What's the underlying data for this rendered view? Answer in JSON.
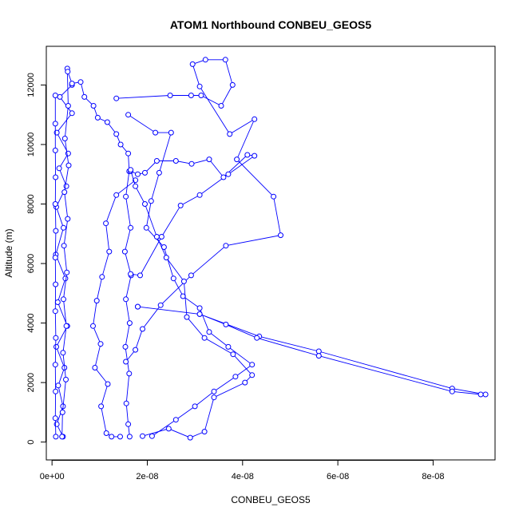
{
  "chart_data": {
    "type": "scatter",
    "title": "ATOM1 Northbound CONBEU_GEOS5",
    "xlabel": "CONBEU_GEOS5",
    "ylabel": "Altitude (m)",
    "xlim": [
      -1.2e-09,
      9.3e-08
    ],
    "ylim": [
      -600,
      13300
    ],
    "x_ticks": [
      0,
      2e-08,
      4e-08,
      6e-08,
      8e-08
    ],
    "x_tick_labels": [
      "0e+00",
      "2e-08",
      "4e-08",
      "6e-08",
      "8e-08"
    ],
    "y_ticks": [
      0,
      2000,
      4000,
      6000,
      8000,
      10000,
      12000
    ],
    "y_tick_labels": [
      "0",
      "2000",
      "4000",
      "6000",
      "8000",
      "10000",
      "12000"
    ],
    "grid": false,
    "legend": "none",
    "marker": "open-circle",
    "connected": true,
    "color": "#0000ff",
    "series": [
      {
        "values": [
          [
            4.2e-09,
            12000
          ],
          [
            1.65e-09,
            11600
          ],
          [
            4.2e-09,
            11050
          ],
          [
            1e-09,
            10400
          ],
          [
            3.4e-09,
            9700
          ],
          [
            1.5e-09,
            9200
          ],
          [
            3e-09,
            8600
          ],
          [
            9e-10,
            7900
          ],
          [
            2.4e-09,
            7200
          ],
          [
            8e-10,
            6300
          ],
          [
            2.8e-09,
            5500
          ],
          [
            1.2e-09,
            4700
          ],
          [
            3.2e-09,
            3900
          ],
          [
            9e-10,
            3200
          ],
          [
            2.6e-09,
            2500
          ],
          [
            1.3e-09,
            1900
          ],
          [
            2.3e-09,
            1200
          ],
          [
            1e-09,
            600
          ],
          [
            2.3e-09,
            180
          ]
        ]
      },
      {
        "values": [
          [
            7e-10,
            11650
          ],
          [
            7e-10,
            10700
          ],
          [
            7e-10,
            9800
          ],
          [
            7.5e-10,
            8900
          ],
          [
            7e-10,
            8000
          ],
          [
            8e-10,
            7100
          ],
          [
            7e-10,
            6200
          ],
          [
            7.5e-10,
            5300
          ],
          [
            7e-10,
            4400
          ],
          [
            8e-10,
            3500
          ],
          [
            7e-10,
            2600
          ],
          [
            7.5e-10,
            1700
          ],
          [
            7e-10,
            800
          ],
          [
            8e-10,
            180
          ]
        ]
      },
      {
        "values": [
          [
            3.2e-09,
            12550
          ],
          [
            3.4e-09,
            11300
          ],
          [
            2.7e-09,
            10200
          ],
          [
            3.5e-09,
            9300
          ],
          [
            2.6e-09,
            8400
          ],
          [
            3.3e-09,
            7500
          ],
          [
            2.5e-09,
            6600
          ],
          [
            3.1e-09,
            5700
          ],
          [
            2.4e-09,
            4800
          ],
          [
            3e-09,
            3900
          ],
          [
            2.3e-09,
            3000
          ],
          [
            2.9e-09,
            2100
          ],
          [
            2.2e-09,
            1000
          ],
          [
            2.1e-09,
            180
          ]
        ]
      },
      {
        "values": [
          [
            3.3e-09,
            12450
          ],
          [
            4.2e-09,
            12050
          ],
          [
            6e-09,
            12100
          ],
          [
            6.8e-09,
            11600
          ],
          [
            8.7e-09,
            11300
          ],
          [
            9.6e-09,
            10900
          ],
          [
            1.16e-08,
            10750
          ],
          [
            1.35e-08,
            10350
          ],
          [
            1.44e-08,
            10000
          ],
          [
            1.6e-08,
            9700
          ],
          [
            1.62e-08,
            9100
          ],
          [
            1.55e-08,
            8250
          ],
          [
            1.65e-08,
            7200
          ],
          [
            1.53e-08,
            6400
          ],
          [
            1.66e-08,
            5600
          ],
          [
            1.55e-08,
            4800
          ],
          [
            1.63e-08,
            4000
          ],
          [
            1.54e-08,
            3200
          ],
          [
            1.62e-08,
            2300
          ],
          [
            1.56e-08,
            1300
          ],
          [
            1.6e-08,
            600
          ],
          [
            1.63e-08,
            180
          ]
        ]
      },
      {
        "values": [
          [
            1.65e-08,
            9100
          ],
          [
            1.8e-08,
            9000
          ],
          [
            1.95e-08,
            9050
          ],
          [
            2.2e-08,
            9450
          ],
          [
            2.6e-08,
            9450
          ],
          [
            2.93e-08,
            9350
          ],
          [
            3.3e-08,
            9500
          ],
          [
            3.6e-08,
            8900
          ],
          [
            4.1e-08,
            9650
          ],
          [
            4.25e-08,
            9620
          ],
          [
            3.7e-08,
            9000
          ],
          [
            3.1e-08,
            8300
          ],
          [
            2.7e-08,
            7950
          ],
          [
            2.3e-08,
            6900
          ],
          [
            1.85e-08,
            5600
          ],
          [
            1.65e-08,
            5650
          ]
        ]
      },
      {
        "values": [
          [
            1.35e-08,
            11550
          ],
          [
            2.48e-08,
            11650
          ],
          [
            2.92e-08,
            11650
          ],
          [
            3.13e-08,
            11650
          ],
          [
            3.55e-08,
            11300
          ],
          [
            3.79e-08,
            12000
          ],
          [
            3.64e-08,
            12850
          ],
          [
            3.22e-08,
            12850
          ],
          [
            2.95e-08,
            12700
          ],
          [
            3.1e-08,
            11950
          ],
          [
            3.73e-08,
            10350
          ],
          [
            4.25e-08,
            10850
          ],
          [
            3.88e-08,
            9500
          ],
          [
            4.65e-08,
            8250
          ],
          [
            4.8e-08,
            6950
          ],
          [
            3.65e-08,
            6600
          ],
          [
            2.92e-08,
            5600
          ],
          [
            2.28e-08,
            4600
          ],
          [
            1.9e-08,
            3800
          ],
          [
            1.75e-08,
            3100
          ],
          [
            1.55e-08,
            2700
          ]
        ]
      },
      {
        "values": [
          [
            1.6e-08,
            11000
          ],
          [
            2.17e-08,
            10400
          ],
          [
            2.5e-08,
            10400
          ],
          [
            2.25e-08,
            9050
          ],
          [
            2.08e-08,
            8100
          ],
          [
            1.98e-08,
            7200
          ],
          [
            2.35e-08,
            6550
          ],
          [
            2.55e-08,
            5500
          ],
          [
            2.75e-08,
            4900
          ],
          [
            3.1e-08,
            4500
          ],
          [
            3.3e-08,
            3700
          ],
          [
            3.7e-08,
            3200
          ],
          [
            4.2e-08,
            2600
          ],
          [
            3.85e-08,
            2200
          ],
          [
            3.4e-08,
            1700
          ],
          [
            3e-08,
            1200
          ],
          [
            2.6e-08,
            750
          ],
          [
            2.1e-08,
            200
          ]
        ]
      },
      {
        "values": [
          [
            1.75e-08,
            8800
          ],
          [
            1.35e-08,
            8300
          ],
          [
            1.13e-08,
            7350
          ],
          [
            1.2e-08,
            6400
          ],
          [
            1.05e-08,
            5550
          ],
          [
            9.4e-09,
            4750
          ],
          [
            8.6e-09,
            3900
          ],
          [
            1.02e-08,
            3300
          ],
          [
            9e-09,
            2500
          ],
          [
            1.17e-08,
            1950
          ],
          [
            1.03e-08,
            1200
          ],
          [
            1.14e-08,
            300
          ],
          [
            1.25e-08,
            180
          ],
          [
            1.43e-08,
            180
          ]
        ]
      },
      {
        "values": [
          [
            1.8e-08,
            4550
          ],
          [
            3.1e-08,
            4300
          ],
          [
            4.35e-08,
            3550
          ],
          [
            5.6e-08,
            3050
          ],
          [
            8.4e-08,
            1800
          ],
          [
            9.1e-08,
            1600
          ],
          [
            9e-08,
            1600
          ],
          [
            8.4e-08,
            1700
          ],
          [
            5.6e-08,
            2900
          ],
          [
            4.3e-08,
            3500
          ],
          [
            3.65e-08,
            3950
          ],
          [
            3.1e-08,
            4300
          ],
          [
            1.8e-08,
            4550
          ]
        ]
      },
      {
        "values": [
          [
            1.9e-08,
            200
          ],
          [
            2.45e-08,
            450
          ],
          [
            2.9e-08,
            150
          ],
          [
            3.2e-08,
            350
          ],
          [
            3.4e-08,
            1500
          ],
          [
            4.05e-08,
            2000
          ],
          [
            4.2e-08,
            2250
          ],
          [
            3.8e-08,
            2950
          ],
          [
            3.2e-08,
            3500
          ],
          [
            2.83e-08,
            4200
          ],
          [
            2.77e-08,
            5400
          ],
          [
            2.4e-08,
            6200
          ],
          [
            2.2e-08,
            6900
          ],
          [
            1.95e-08,
            8000
          ],
          [
            1.75e-08,
            8600
          ],
          [
            1.65e-08,
            9150
          ]
        ]
      }
    ]
  }
}
